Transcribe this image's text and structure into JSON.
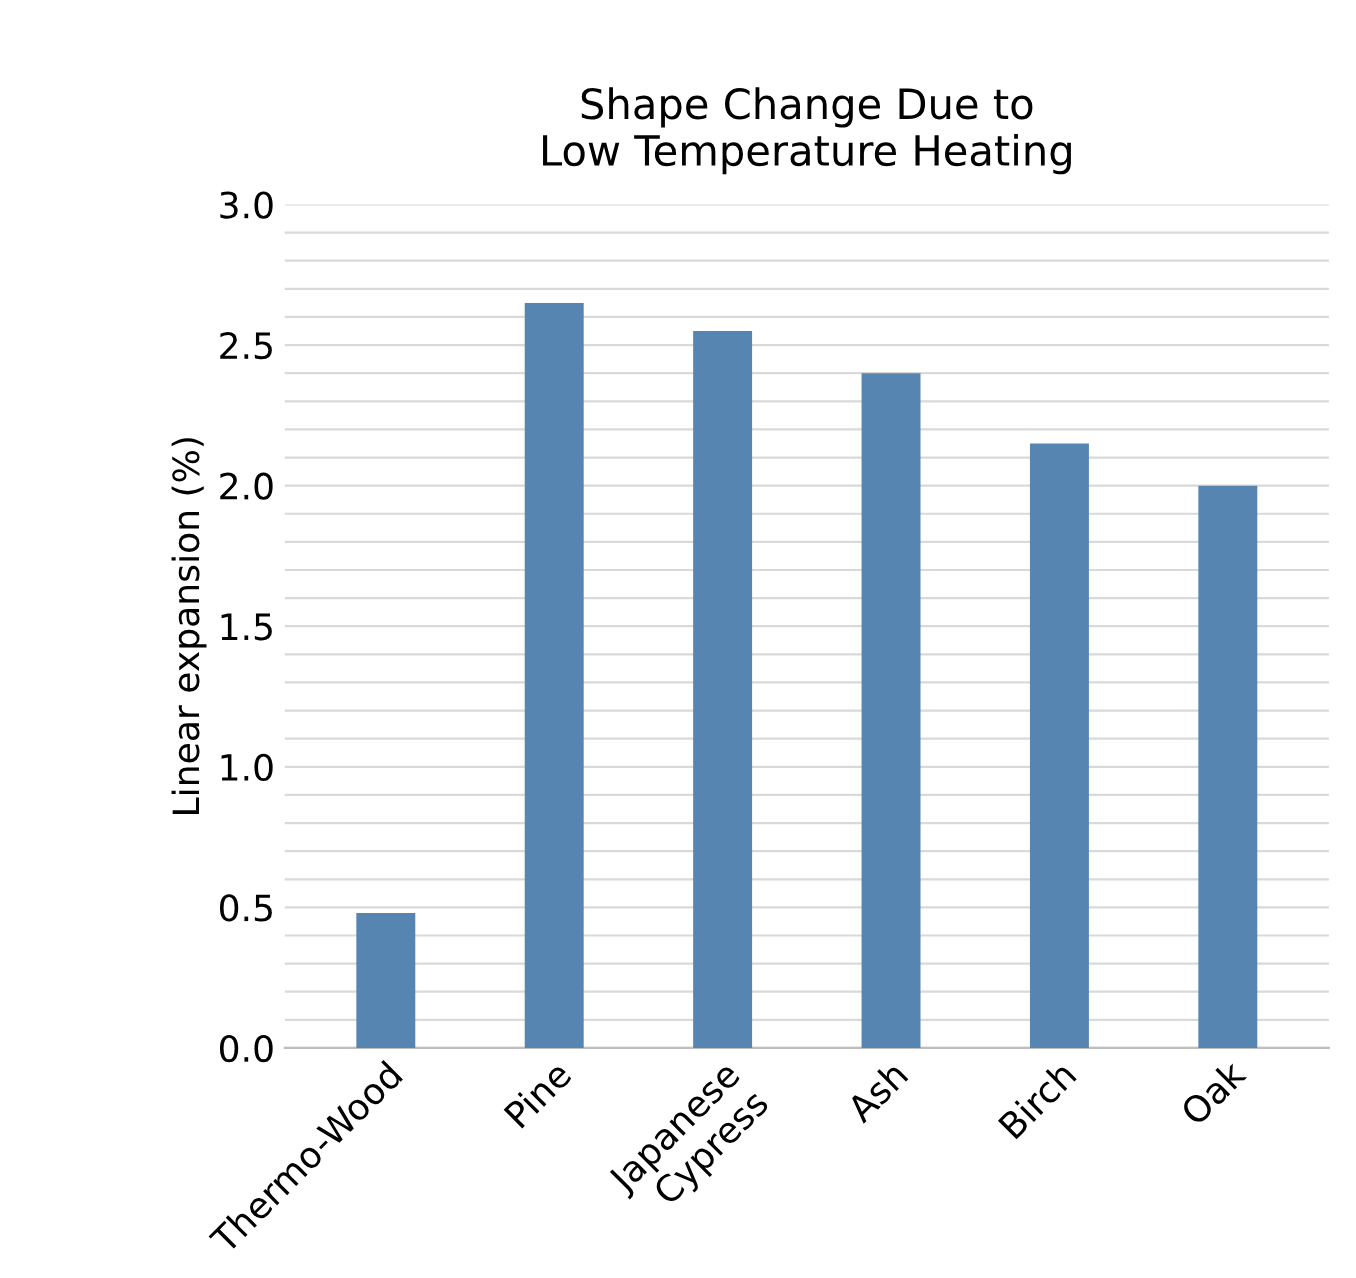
{
  "chart_data": {
    "type": "bar",
    "title": "Shape Change Due to\nLow Temperature Heating",
    "ylabel": "Linear expansion (%)",
    "categories": [
      "Thermo-Wood",
      "Pine",
      "Japanese\nCypress",
      "Ash",
      "Birch",
      "Oak"
    ],
    "values": [
      0.48,
      2.65,
      2.55,
      2.4,
      2.15,
      2.0
    ],
    "color": "#5585b0",
    "ylim": [
      0,
      3.0
    ],
    "yticks": [
      {
        "value": 0,
        "label": "0.0"
      },
      {
        "value": 0.1,
        "label": null
      },
      {
        "value": 0.2,
        "label": null
      },
      {
        "value": 0.3,
        "label": null
      },
      {
        "value": 0.4,
        "label": null
      },
      {
        "value": 0.5,
        "label": "0.5"
      },
      {
        "value": 0.6,
        "label": null
      },
      {
        "value": 0.7,
        "label": null
      },
      {
        "value": 0.8,
        "label": null
      },
      {
        "value": 0.9,
        "label": null
      },
      {
        "value": 1.0,
        "label": "1.0"
      },
      {
        "value": 1.1,
        "label": null
      },
      {
        "value": 1.2,
        "label": null
      },
      {
        "value": 1.3,
        "label": null
      },
      {
        "value": 1.4,
        "label": null
      },
      {
        "value": 1.5,
        "label": "1.5"
      },
      {
        "value": 1.6,
        "label": null
      },
      {
        "value": 1.7,
        "label": null
      },
      {
        "value": 1.8,
        "label": null
      },
      {
        "value": 1.9,
        "label": null
      },
      {
        "value": 2.0,
        "label": "2.0"
      },
      {
        "value": 2.1,
        "label": null
      },
      {
        "value": 2.2,
        "label": null
      },
      {
        "value": 2.3,
        "label": null
      },
      {
        "value": 2.4,
        "label": null
      },
      {
        "value": 2.5,
        "label": "2.5"
      },
      {
        "value": 2.6,
        "label": null
      },
      {
        "value": 2.7,
        "label": null
      },
      {
        "value": 2.8,
        "label": null
      },
      {
        "value": 2.9,
        "label": null
      },
      {
        "value": 3.0,
        "label": "3.0"
      }
    ],
    "grid": "y"
  }
}
